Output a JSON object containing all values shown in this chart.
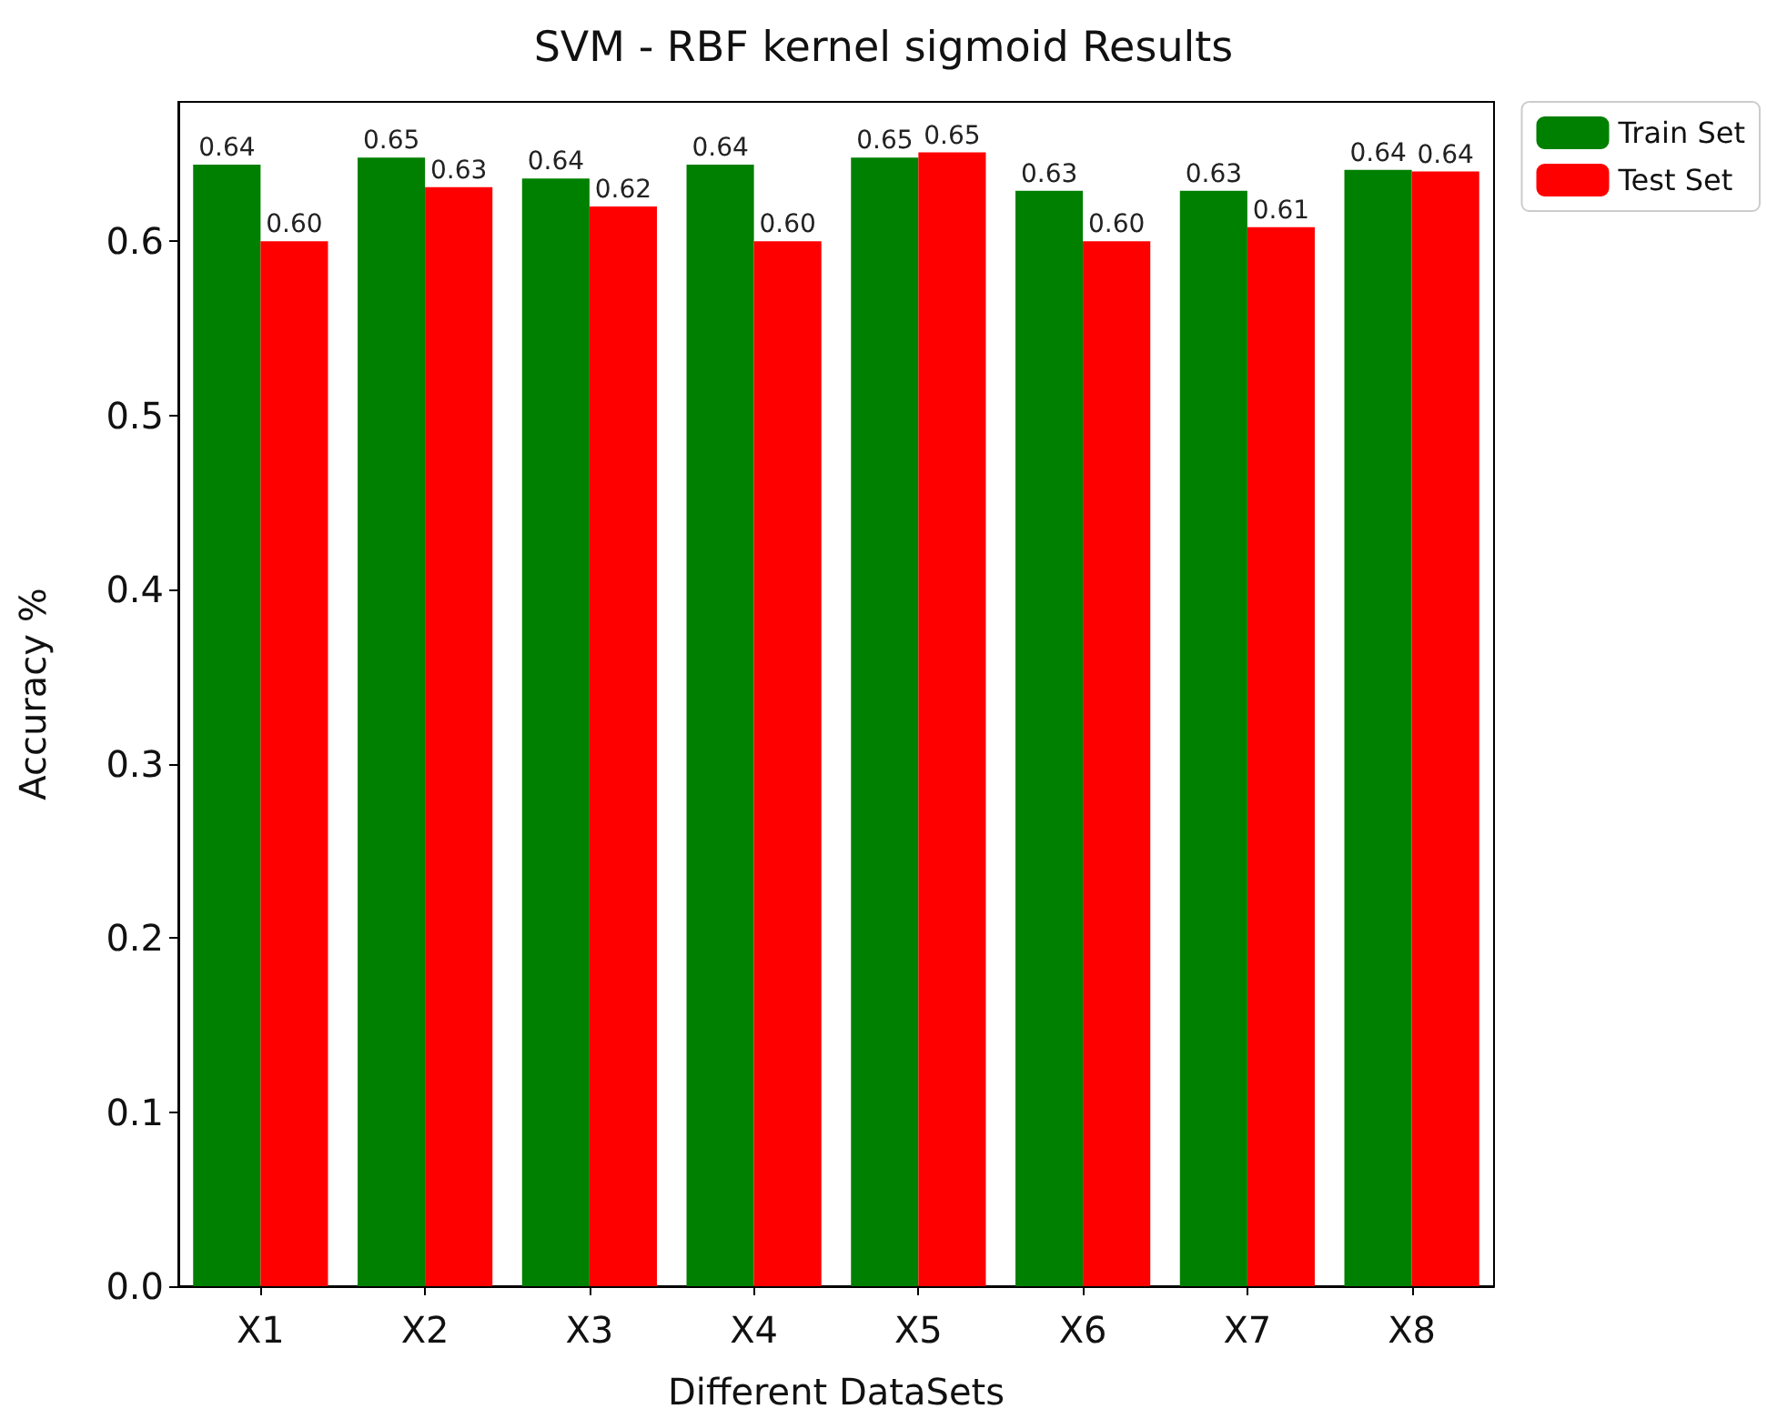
{
  "chart_data": {
    "type": "bar",
    "title": "SVM - RBF kernel sigmoid Results",
    "xlabel": "Different DataSets",
    "ylabel": "Accuracy %",
    "categories": [
      "X1",
      "X2",
      "X3",
      "X4",
      "X5",
      "X6",
      "X7",
      "X8"
    ],
    "series": [
      {
        "name": "Train Set",
        "color": "#008000",
        "values": [
          0.644,
          0.648,
          0.636,
          0.644,
          0.648,
          0.629,
          0.629,
          0.641
        ],
        "value_labels": [
          "0.64",
          "0.65",
          "0.64",
          "0.64",
          "0.65",
          "0.63",
          "0.63",
          "0.64"
        ]
      },
      {
        "name": "Test Set",
        "color": "#ff0000",
        "values": [
          0.6,
          0.631,
          0.62,
          0.6,
          0.651,
          0.6,
          0.608,
          0.64
        ],
        "value_labels": [
          "0.60",
          "0.63",
          "0.62",
          "0.60",
          "0.65",
          "0.60",
          "0.61",
          "0.64"
        ]
      }
    ],
    "ylim": [
      0,
      0.68
    ],
    "yticks": [
      {
        "value": 0,
        "label": "0.0"
      },
      0.1,
      0.2,
      0.3,
      0.4,
      0.5,
      0.6
    ],
    "grid": false,
    "legend": "top right"
  }
}
